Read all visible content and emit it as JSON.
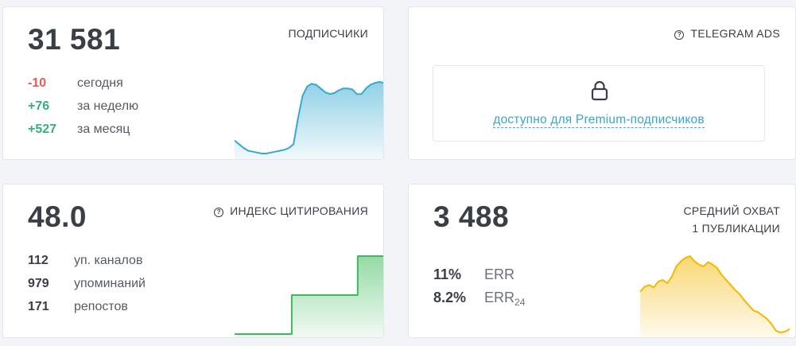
{
  "subscribers": {
    "title": "ПОДПИСЧИКИ",
    "value": "31 581",
    "rows": [
      {
        "value": "-10",
        "label": "сегодня"
      },
      {
        "value": "+76",
        "label": "за неделю"
      },
      {
        "value": "+527",
        "label": "за месяц"
      }
    ]
  },
  "telegram_ads": {
    "title": "TELEGRAM ADS",
    "locked_text": "доступно для Premium-подписчиков",
    "icon": "lock-icon"
  },
  "citation": {
    "title": "ИНДЕКС ЦИТИРОВАНИЯ",
    "value": "48.0",
    "rows": [
      {
        "value": "112",
        "label": "уп. каналов"
      },
      {
        "value": "979",
        "label": "упоминаний"
      },
      {
        "value": "171",
        "label": "репостов"
      }
    ]
  },
  "reach": {
    "title_line1": "СРЕДНИЙ ОХВАТ",
    "title_line2": "1 ПУБЛИКАЦИИ",
    "value": "3 488",
    "rows": [
      {
        "value": "11%",
        "label": "ERR",
        "sub": ""
      },
      {
        "value": "8.2%",
        "label": "ERR",
        "sub": "24"
      }
    ]
  },
  "colors": {
    "negative": "#e45c5c",
    "positive": "#32b27a",
    "link": "#3aa6c9",
    "subscribers_chart": "#35a9d2",
    "citation_chart": "#3dbb5b",
    "reach_chart": "#f5b800"
  },
  "chart_data": [
    {
      "type": "area",
      "name": "subscribers-sparkline",
      "y": [
        14,
        10,
        6,
        3,
        2,
        1,
        0,
        0,
        1,
        2,
        3,
        4,
        6,
        10,
        38,
        62,
        72,
        75,
        74,
        70,
        66,
        64,
        65,
        68,
        70,
        70,
        69,
        64,
        64,
        70,
        74,
        76,
        77,
        76
      ]
    },
    {
      "type": "area",
      "name": "citation-sparkline",
      "y": [
        0,
        0,
        0,
        0,
        0,
        0,
        0,
        0,
        0,
        0,
        0,
        0,
        0,
        1,
        1,
        1,
        1,
        1,
        1,
        1,
        1,
        1,
        1,
        1,
        1,
        1,
        1,
        1,
        2,
        2,
        2,
        2,
        2,
        2,
        2
      ]
    },
    {
      "type": "area",
      "name": "reach-sparkline",
      "y": [
        50,
        56,
        58,
        55,
        62,
        64,
        60,
        68,
        80,
        86,
        90,
        92,
        86,
        82,
        80,
        85,
        82,
        78,
        70,
        64,
        58,
        52,
        47,
        40,
        34,
        28,
        26,
        22,
        18,
        12,
        4,
        2,
        3,
        6
      ]
    }
  ]
}
